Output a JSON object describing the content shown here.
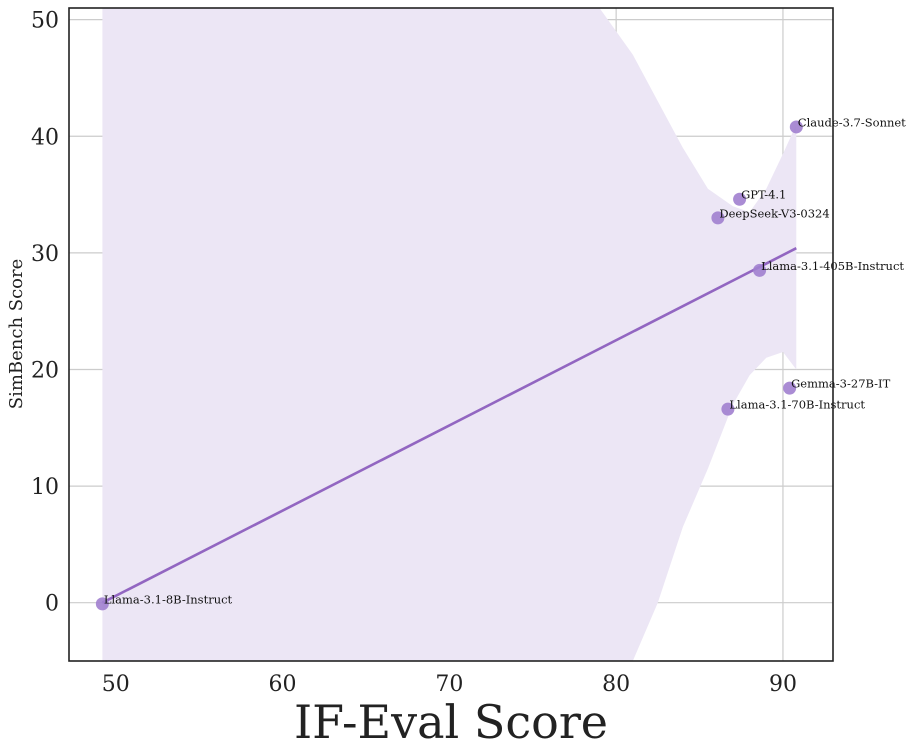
{
  "chart_data": {
    "type": "scatter",
    "title": "",
    "xlabel": "IF-Eval Score",
    "ylabel": "SimBench Score",
    "xlim": [
      47.2,
      93
    ],
    "ylim": [
      -5,
      51
    ],
    "x_ticks": [
      "50",
      "60",
      "70",
      "80",
      "90"
    ],
    "y_ticks": [
      "0",
      "10",
      "20",
      "30",
      "40",
      "50"
    ],
    "grid": true,
    "points": [
      {
        "label": "Llama-3.1-8B-Instruct",
        "x": 49.2,
        "y": -0.1
      },
      {
        "label": "Llama-3.1-70B-Instruct",
        "x": 86.7,
        "y": 16.6
      },
      {
        "label": "DeepSeek-V3-0324",
        "x": 86.1,
        "y": 33.0
      },
      {
        "label": "GPT-4.1",
        "x": 87.4,
        "y": 34.6
      },
      {
        "label": "Llama-3.1-405B-Instruct",
        "x": 88.6,
        "y": 28.5
      },
      {
        "label": "Gemma-3-27B-IT",
        "x": 90.4,
        "y": 18.4
      },
      {
        "label": "Claude-3.7-Sonnet",
        "x": 90.8,
        "y": 40.8
      }
    ],
    "regression_line": {
      "x": [
        49.2,
        90.8
      ],
      "y": [
        0.0,
        30.4
      ]
    },
    "confidence_band": {
      "x": [
        49.2,
        52,
        56,
        60,
        64,
        68,
        72,
        76,
        79,
        81,
        82.5,
        84,
        85.5,
        87,
        88,
        89,
        90,
        90.8
      ],
      "upper": [
        60,
        60,
        60,
        60,
        60,
        60,
        60,
        56,
        51,
        47,
        43,
        39,
        35.5,
        34,
        33.5,
        35.5,
        38.5,
        41
      ],
      "lower": [
        -10,
        -10,
        -10,
        -10,
        -10,
        -10,
        -10,
        -10,
        -10,
        -5,
        0,
        6.5,
        11.5,
        17,
        19.5,
        21,
        21.5,
        20
      ]
    },
    "colors": {
      "point": "#a17fcf",
      "line": "#9266c1",
      "band": "#ece6f5",
      "grid": "#cccccc",
      "axis": "#222222"
    }
  }
}
